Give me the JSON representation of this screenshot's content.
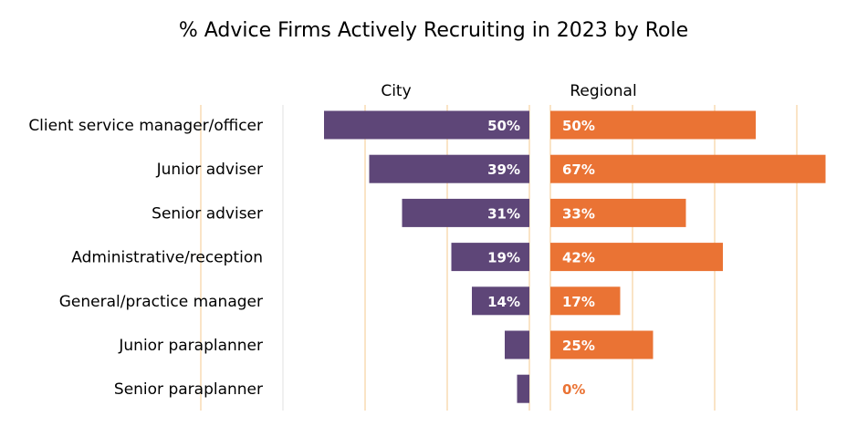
{
  "chart_data": {
    "type": "bar",
    "orientation": "horizontal",
    "title": "% Advice Firms Actively Recruiting in 2023 by Role",
    "categories": [
      "Client service manager/officer",
      "Junior adviser",
      "Senior adviser",
      "Administrative/reception",
      "General/practice manager",
      "Junior paraplanner",
      "Senior paraplanner"
    ],
    "series": [
      {
        "name": "City",
        "values": [
          50,
          39,
          31,
          19,
          14,
          6,
          3
        ],
        "labels": [
          "50%",
          "39%",
          "31%",
          "19%",
          "14%",
          "",
          ""
        ],
        "color": "#5e4678",
        "label_color": "#ffffff"
      },
      {
        "name": "Regional",
        "values": [
          50,
          67,
          33,
          42,
          17,
          25,
          0
        ],
        "labels": [
          "50%",
          "67%",
          "33%",
          "42%",
          "17%",
          "25%",
          "0%"
        ],
        "color": "#ea7334",
        "label_color": "#ffffff",
        "zero_label_color": "#ea7334"
      }
    ],
    "xlim": [
      0,
      80
    ],
    "gridlines": [
      0,
      20,
      40,
      60,
      80
    ],
    "grid_color": "#f5c98c",
    "legend": "none"
  }
}
